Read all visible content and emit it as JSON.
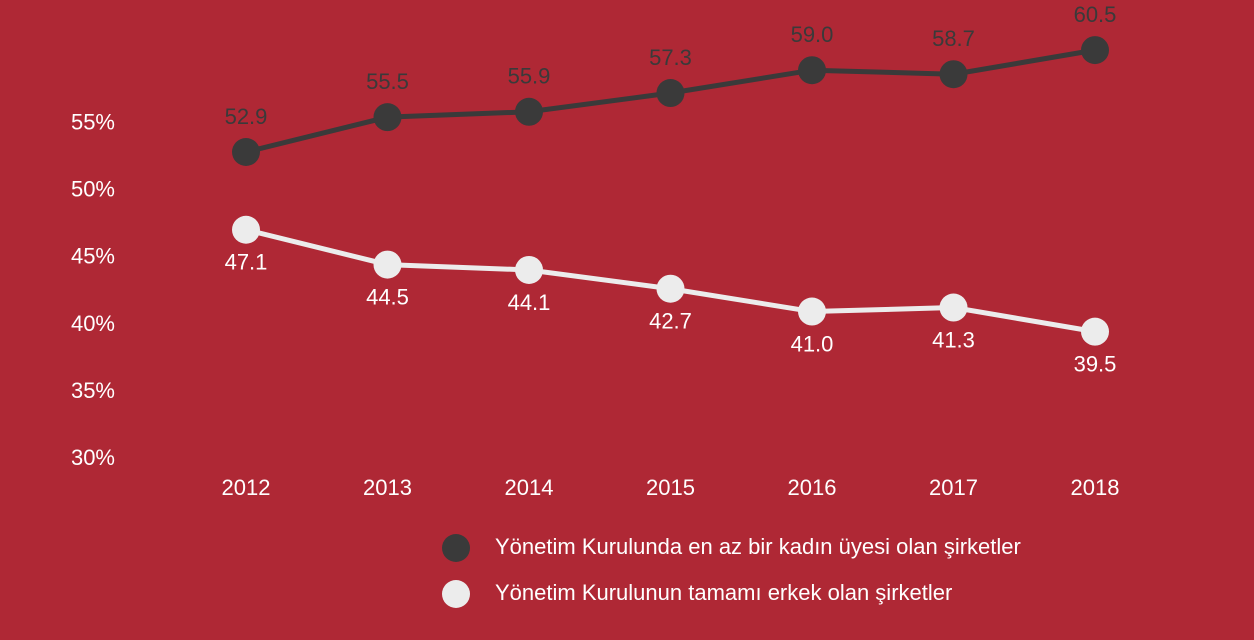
{
  "chart_data": {
    "type": "line",
    "categories": [
      "2012",
      "2013",
      "2014",
      "2015",
      "2016",
      "2017",
      "2018"
    ],
    "series": [
      {
        "name": "Yönetim Kurulunda en az bir kadın üyesi olan şirketler",
        "color": "#3a3a3a",
        "label_color": "#3a3a3a",
        "values": [
          52.9,
          55.5,
          55.9,
          57.3,
          59.0,
          58.7,
          60.5
        ],
        "value_labels": [
          "52.9",
          "55.5",
          "55.9",
          "57.3",
          "59.0",
          "58.7",
          "60.5"
        ]
      },
      {
        "name": "Yönetim Kurulunun tamamı erkek olan şirketler",
        "color": "#ececec",
        "label_color": "#ffffff",
        "values": [
          47.1,
          44.5,
          44.1,
          42.7,
          41.0,
          41.3,
          39.5
        ],
        "value_labels": [
          "47.1",
          "44.5",
          "44.1",
          "42.7",
          "41.0",
          "41.3",
          "39.5"
        ]
      }
    ],
    "ylim": [
      30,
      62
    ],
    "yticks": [
      {
        "value": 30,
        "label": "30%"
      },
      {
        "value": 35,
        "label": "35%"
      },
      {
        "value": 40,
        "label": "40%"
      },
      {
        "value": 45,
        "label": "45%"
      },
      {
        "value": 50,
        "label": "50%"
      },
      {
        "value": 55,
        "label": "55%"
      }
    ],
    "grid": false
  }
}
